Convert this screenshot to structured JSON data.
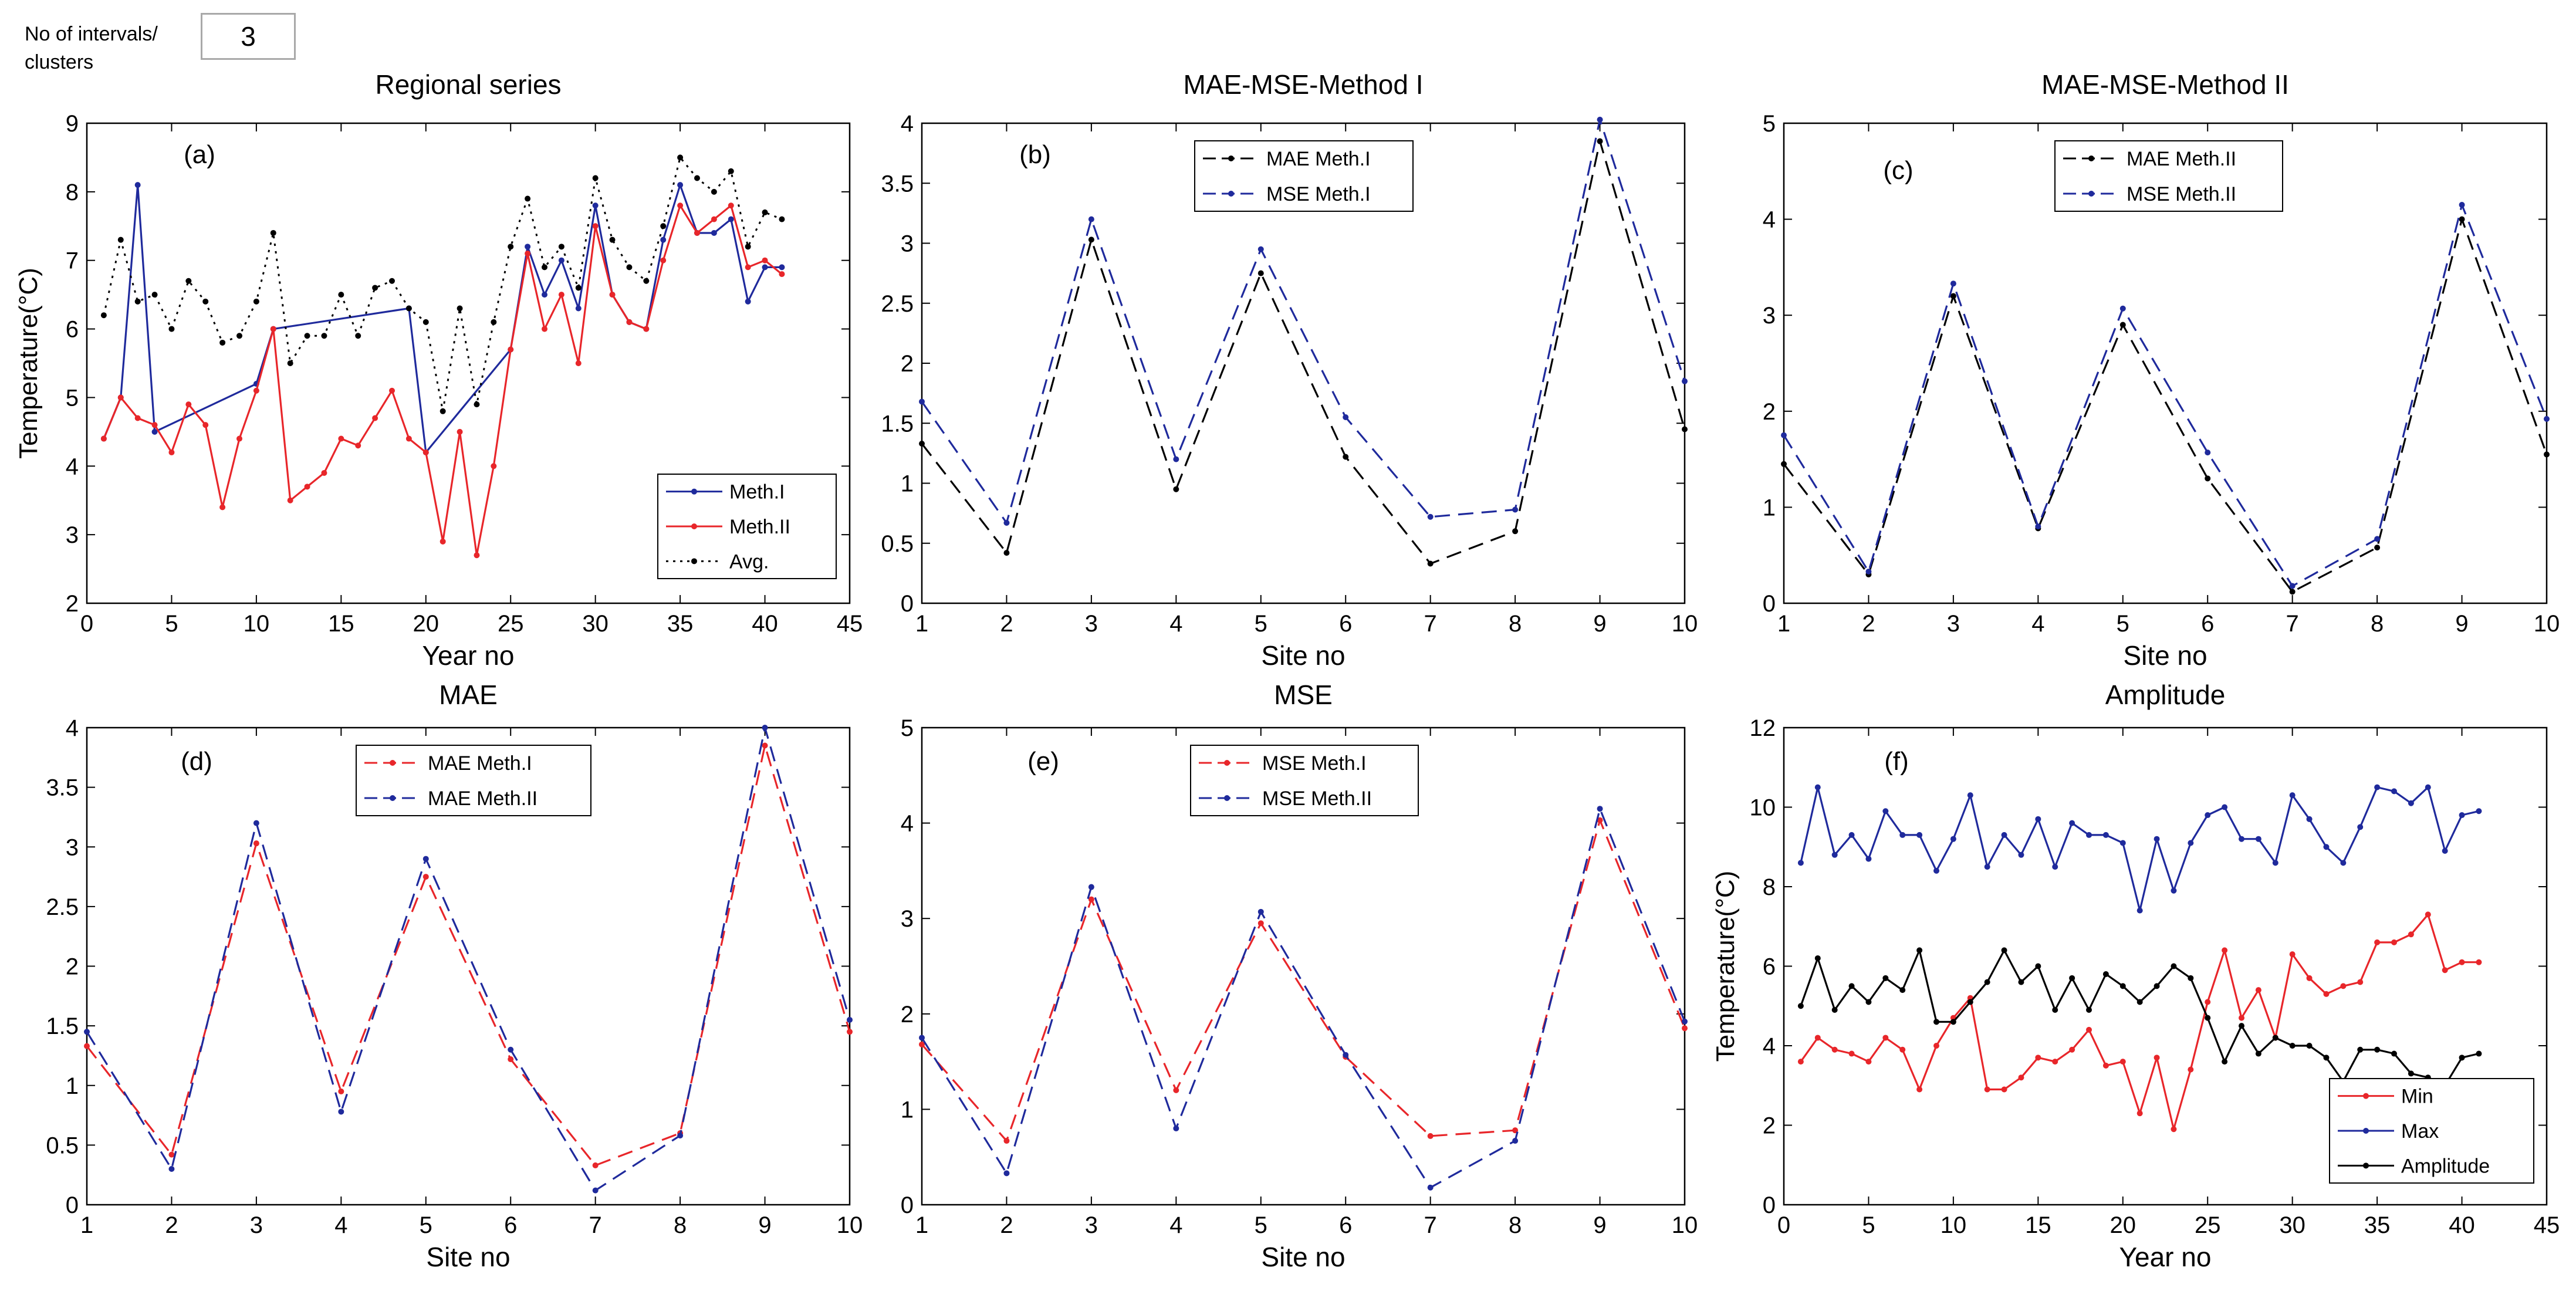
{
  "control": {
    "label_line1": "No of intervals/",
    "label_line2": "clusters",
    "value": "3"
  },
  "chart_data": [
    {
      "type": "line",
      "title": "Regional series",
      "panel_tag": "(a)",
      "xlabel": "Year no",
      "ylabel": "Temperature(°C)",
      "xlim": [
        0,
        45
      ],
      "ylim": [
        2,
        9
      ],
      "xticks": [
        "0",
        "5",
        "10",
        "15",
        "20",
        "25",
        "30",
        "35",
        "40",
        "45"
      ],
      "yticks": [
        "2",
        "3",
        "4",
        "5",
        "6",
        "7",
        "8",
        "9"
      ],
      "legend": "bottom-right",
      "series": [
        {
          "name": "Meth.I",
          "color": "#1f2a9c",
          "style": "solid",
          "x": [
            1,
            2,
            3,
            4,
            10,
            11,
            19,
            20,
            25,
            26,
            27,
            28,
            29,
            30,
            31,
            32,
            33,
            34,
            35,
            36,
            37,
            38,
            39,
            40,
            41
          ],
          "y": [
            4.4,
            5.0,
            8.1,
            4.5,
            5.2,
            6.0,
            6.3,
            4.2,
            5.7,
            7.2,
            6.5,
            7.0,
            6.3,
            7.8,
            6.5,
            6.1,
            6.0,
            7.3,
            8.1,
            7.4,
            7.4,
            7.6,
            6.4,
            6.9,
            6.9
          ]
        },
        {
          "name": "Meth.II",
          "color": "#e8262a",
          "style": "solid",
          "x": [
            1,
            2,
            3,
            4,
            5,
            6,
            7,
            8,
            9,
            10,
            11,
            12,
            13,
            14,
            15,
            16,
            17,
            18,
            19,
            20,
            21,
            22,
            23,
            24,
            25,
            26,
            27,
            28,
            29,
            30,
            31,
            32,
            33,
            34,
            35,
            36,
            37,
            38,
            39,
            40,
            41
          ],
          "y": [
            4.4,
            5.0,
            4.7,
            4.6,
            4.2,
            4.9,
            4.6,
            3.4,
            4.4,
            5.1,
            6.0,
            3.5,
            3.7,
            3.9,
            4.4,
            4.3,
            4.7,
            5.1,
            4.4,
            4.2,
            2.9,
            4.5,
            2.7,
            4.0,
            5.7,
            7.1,
            6.0,
            6.5,
            5.5,
            7.5,
            6.5,
            6.1,
            6.0,
            7.0,
            7.8,
            7.4,
            7.6,
            7.8,
            6.9,
            7.0,
            6.8
          ]
        },
        {
          "name": "Avg.",
          "color": "#000000",
          "style": "dotted",
          "x": [
            1,
            2,
            3,
            4,
            5,
            6,
            7,
            8,
            9,
            10,
            11,
            12,
            13,
            14,
            15,
            16,
            17,
            18,
            19,
            20,
            21,
            22,
            23,
            24,
            25,
            26,
            27,
            28,
            29,
            30,
            31,
            32,
            33,
            34,
            35,
            36,
            37,
            38,
            39,
            40,
            41
          ],
          "y": [
            6.2,
            7.3,
            6.4,
            6.5,
            6.0,
            6.7,
            6.4,
            5.8,
            5.9,
            6.4,
            7.4,
            5.5,
            5.9,
            5.9,
            6.5,
            5.9,
            6.6,
            6.7,
            6.3,
            6.1,
            4.8,
            6.3,
            4.9,
            6.1,
            7.2,
            7.9,
            6.9,
            7.2,
            6.6,
            8.2,
            7.3,
            6.9,
            6.7,
            7.5,
            8.5,
            8.2,
            8.0,
            8.3,
            7.2,
            7.7,
            7.6
          ]
        }
      ]
    },
    {
      "type": "line",
      "title": "MAE-MSE-Method I",
      "panel_tag": "(b)",
      "xlabel": "Site no",
      "ylabel": "",
      "xlim": [
        1,
        10
      ],
      "ylim": [
        0,
        4
      ],
      "xticks": [
        "1",
        "2",
        "3",
        "4",
        "5",
        "6",
        "7",
        "8",
        "9",
        "10"
      ],
      "yticks": [
        "0",
        "0.5",
        "1",
        "1.5",
        "2",
        "2.5",
        "3",
        "3.5",
        "4"
      ],
      "legend": "top-center",
      "series": [
        {
          "name": "MAE Meth.I",
          "color": "#000000",
          "style": "dashed",
          "x": [
            1,
            2,
            3,
            4,
            5,
            6,
            7,
            8,
            9,
            10
          ],
          "y": [
            1.33,
            0.42,
            3.03,
            0.95,
            2.75,
            1.22,
            0.33,
            0.6,
            3.85,
            1.45
          ]
        },
        {
          "name": "MSE Meth.I",
          "color": "#1f2a9c",
          "style": "dashed",
          "x": [
            1,
            2,
            3,
            4,
            5,
            6,
            7,
            8,
            9,
            10
          ],
          "y": [
            1.68,
            0.67,
            3.2,
            1.2,
            2.95,
            1.55,
            0.72,
            0.78,
            4.03,
            1.85
          ]
        }
      ]
    },
    {
      "type": "line",
      "title": "MAE-MSE-Method II",
      "panel_tag": "(c)",
      "xlabel": "Site no",
      "ylabel": "",
      "xlim": [
        1,
        10
      ],
      "ylim": [
        0,
        5
      ],
      "xticks": [
        "1",
        "2",
        "3",
        "4",
        "5",
        "6",
        "7",
        "8",
        "9",
        "10"
      ],
      "yticks": [
        "0",
        "1",
        "2",
        "3",
        "4",
        "5"
      ],
      "legend": "top-center",
      "series": [
        {
          "name": "MAE Meth.II",
          "color": "#000000",
          "style": "dashed",
          "x": [
            1,
            2,
            3,
            4,
            5,
            6,
            7,
            8,
            9,
            10
          ],
          "y": [
            1.45,
            0.3,
            3.2,
            0.78,
            2.9,
            1.3,
            0.12,
            0.58,
            4.0,
            1.55
          ]
        },
        {
          "name": "MSE Meth.II",
          "color": "#1f2a9c",
          "style": "dashed",
          "x": [
            1,
            2,
            3,
            4,
            5,
            6,
            7,
            8,
            9,
            10
          ],
          "y": [
            1.75,
            0.33,
            3.33,
            0.8,
            3.07,
            1.57,
            0.18,
            0.67,
            4.15,
            1.92
          ]
        }
      ]
    },
    {
      "type": "line",
      "title": "MAE",
      "panel_tag": "(d)",
      "xlabel": "Site no",
      "ylabel": "",
      "xlim": [
        1,
        10
      ],
      "ylim": [
        0,
        4
      ],
      "xticks": [
        "1",
        "2",
        "3",
        "4",
        "5",
        "6",
        "7",
        "8",
        "9",
        "10"
      ],
      "yticks": [
        "0",
        "0.5",
        "1",
        "1.5",
        "2",
        "2.5",
        "3",
        "3.5",
        "4"
      ],
      "legend": "top-center",
      "series": [
        {
          "name": "MAE Meth.I",
          "color": "#e8262a",
          "style": "dashed",
          "x": [
            1,
            2,
            3,
            4,
            5,
            6,
            7,
            8,
            9,
            10
          ],
          "y": [
            1.33,
            0.42,
            3.03,
            0.95,
            2.75,
            1.22,
            0.33,
            0.6,
            3.85,
            1.45
          ]
        },
        {
          "name": "MAE Meth.II",
          "color": "#1f2a9c",
          "style": "dashed",
          "x": [
            1,
            2,
            3,
            4,
            5,
            6,
            7,
            8,
            9,
            10
          ],
          "y": [
            1.45,
            0.3,
            3.2,
            0.78,
            2.9,
            1.3,
            0.12,
            0.58,
            4.0,
            1.55
          ]
        }
      ]
    },
    {
      "type": "line",
      "title": "MSE",
      "panel_tag": "(e)",
      "xlabel": "Site no",
      "ylabel": "",
      "xlim": [
        1,
        10
      ],
      "ylim": [
        0,
        5
      ],
      "xticks": [
        "1",
        "2",
        "3",
        "4",
        "5",
        "6",
        "7",
        "8",
        "9",
        "10"
      ],
      "yticks": [
        "0",
        "1",
        "2",
        "3",
        "4",
        "5"
      ],
      "legend": "top-center",
      "series": [
        {
          "name": "MSE Meth.I",
          "color": "#e8262a",
          "style": "dashed",
          "x": [
            1,
            2,
            3,
            4,
            5,
            6,
            7,
            8,
            9,
            10
          ],
          "y": [
            1.68,
            0.67,
            3.2,
            1.2,
            2.95,
            1.55,
            0.72,
            0.78,
            4.03,
            1.85
          ]
        },
        {
          "name": "MSE Meth.II",
          "color": "#1f2a9c",
          "style": "dashed",
          "x": [
            1,
            2,
            3,
            4,
            5,
            6,
            7,
            8,
            9,
            10
          ],
          "y": [
            1.75,
            0.33,
            3.33,
            0.8,
            3.07,
            1.57,
            0.18,
            0.67,
            4.15,
            1.92
          ]
        }
      ]
    },
    {
      "type": "line",
      "title": "Amplitude",
      "panel_tag": "(f)",
      "xlabel": "Year no",
      "ylabel": "Temperature(°C)",
      "xlim": [
        0,
        45
      ],
      "ylim": [
        0,
        12
      ],
      "xticks": [
        "0",
        "5",
        "10",
        "15",
        "20",
        "25",
        "30",
        "35",
        "40",
        "45"
      ],
      "yticks": [
        "0",
        "2",
        "4",
        "6",
        "8",
        "10",
        "12"
      ],
      "legend": "bottom-right",
      "series": [
        {
          "name": "Min",
          "color": "#e8262a",
          "style": "solid",
          "x": [
            1,
            2,
            3,
            4,
            5,
            6,
            7,
            8,
            9,
            10,
            11,
            12,
            13,
            14,
            15,
            16,
            17,
            18,
            19,
            20,
            21,
            22,
            23,
            24,
            25,
            26,
            27,
            28,
            29,
            30,
            31,
            32,
            33,
            34,
            35,
            36,
            37,
            38,
            39,
            40,
            41
          ],
          "y": [
            3.6,
            4.2,
            3.9,
            3.8,
            3.6,
            4.2,
            3.9,
            2.9,
            4.0,
            4.7,
            5.2,
            2.9,
            2.9,
            3.2,
            3.7,
            3.6,
            3.9,
            4.4,
            3.5,
            3.6,
            2.3,
            3.7,
            1.9,
            3.4,
            5.1,
            6.4,
            4.7,
            5.4,
            4.2,
            6.3,
            5.7,
            5.3,
            5.5,
            5.6,
            6.6,
            6.6,
            6.8,
            7.3,
            5.9,
            6.1,
            6.1
          ]
        },
        {
          "name": "Max",
          "color": "#1f2a9c",
          "style": "solid",
          "x": [
            1,
            2,
            3,
            4,
            5,
            6,
            7,
            8,
            9,
            10,
            11,
            12,
            13,
            14,
            15,
            16,
            17,
            18,
            19,
            20,
            21,
            22,
            23,
            24,
            25,
            26,
            27,
            28,
            29,
            30,
            31,
            32,
            33,
            34,
            35,
            36,
            37,
            38,
            39,
            40,
            41
          ],
          "y": [
            8.6,
            10.5,
            8.8,
            9.3,
            8.7,
            9.9,
            9.3,
            9.3,
            8.4,
            9.2,
            10.3,
            8.5,
            9.3,
            8.8,
            9.7,
            8.5,
            9.6,
            9.3,
            9.3,
            9.1,
            7.4,
            9.2,
            7.9,
            9.1,
            9.8,
            10.0,
            9.2,
            9.2,
            8.6,
            10.3,
            9.7,
            9.0,
            8.6,
            9.5,
            10.5,
            10.4,
            10.1,
            10.5,
            8.9,
            9.8,
            9.9
          ]
        },
        {
          "name": "Amplitude",
          "color": "#000000",
          "style": "solid",
          "x": [
            1,
            2,
            3,
            4,
            5,
            6,
            7,
            8,
            9,
            10,
            11,
            12,
            13,
            14,
            15,
            16,
            17,
            18,
            19,
            20,
            21,
            22,
            23,
            24,
            25,
            26,
            27,
            28,
            29,
            30,
            31,
            32,
            33,
            34,
            35,
            36,
            37,
            38,
            39,
            40,
            41
          ],
          "y": [
            5.0,
            6.2,
            4.9,
            5.5,
            5.1,
            5.7,
            5.4,
            6.4,
            4.6,
            4.6,
            5.1,
            5.6,
            6.4,
            5.6,
            6.0,
            4.9,
            5.7,
            4.9,
            5.8,
            5.5,
            5.1,
            5.5,
            6.0,
            5.7,
            4.7,
            3.6,
            4.5,
            3.8,
            4.2,
            4.0,
            4.0,
            3.7,
            3.1,
            3.9,
            3.9,
            3.8,
            3.3,
            3.2,
            3.0,
            3.7,
            3.8
          ]
        }
      ]
    }
  ]
}
